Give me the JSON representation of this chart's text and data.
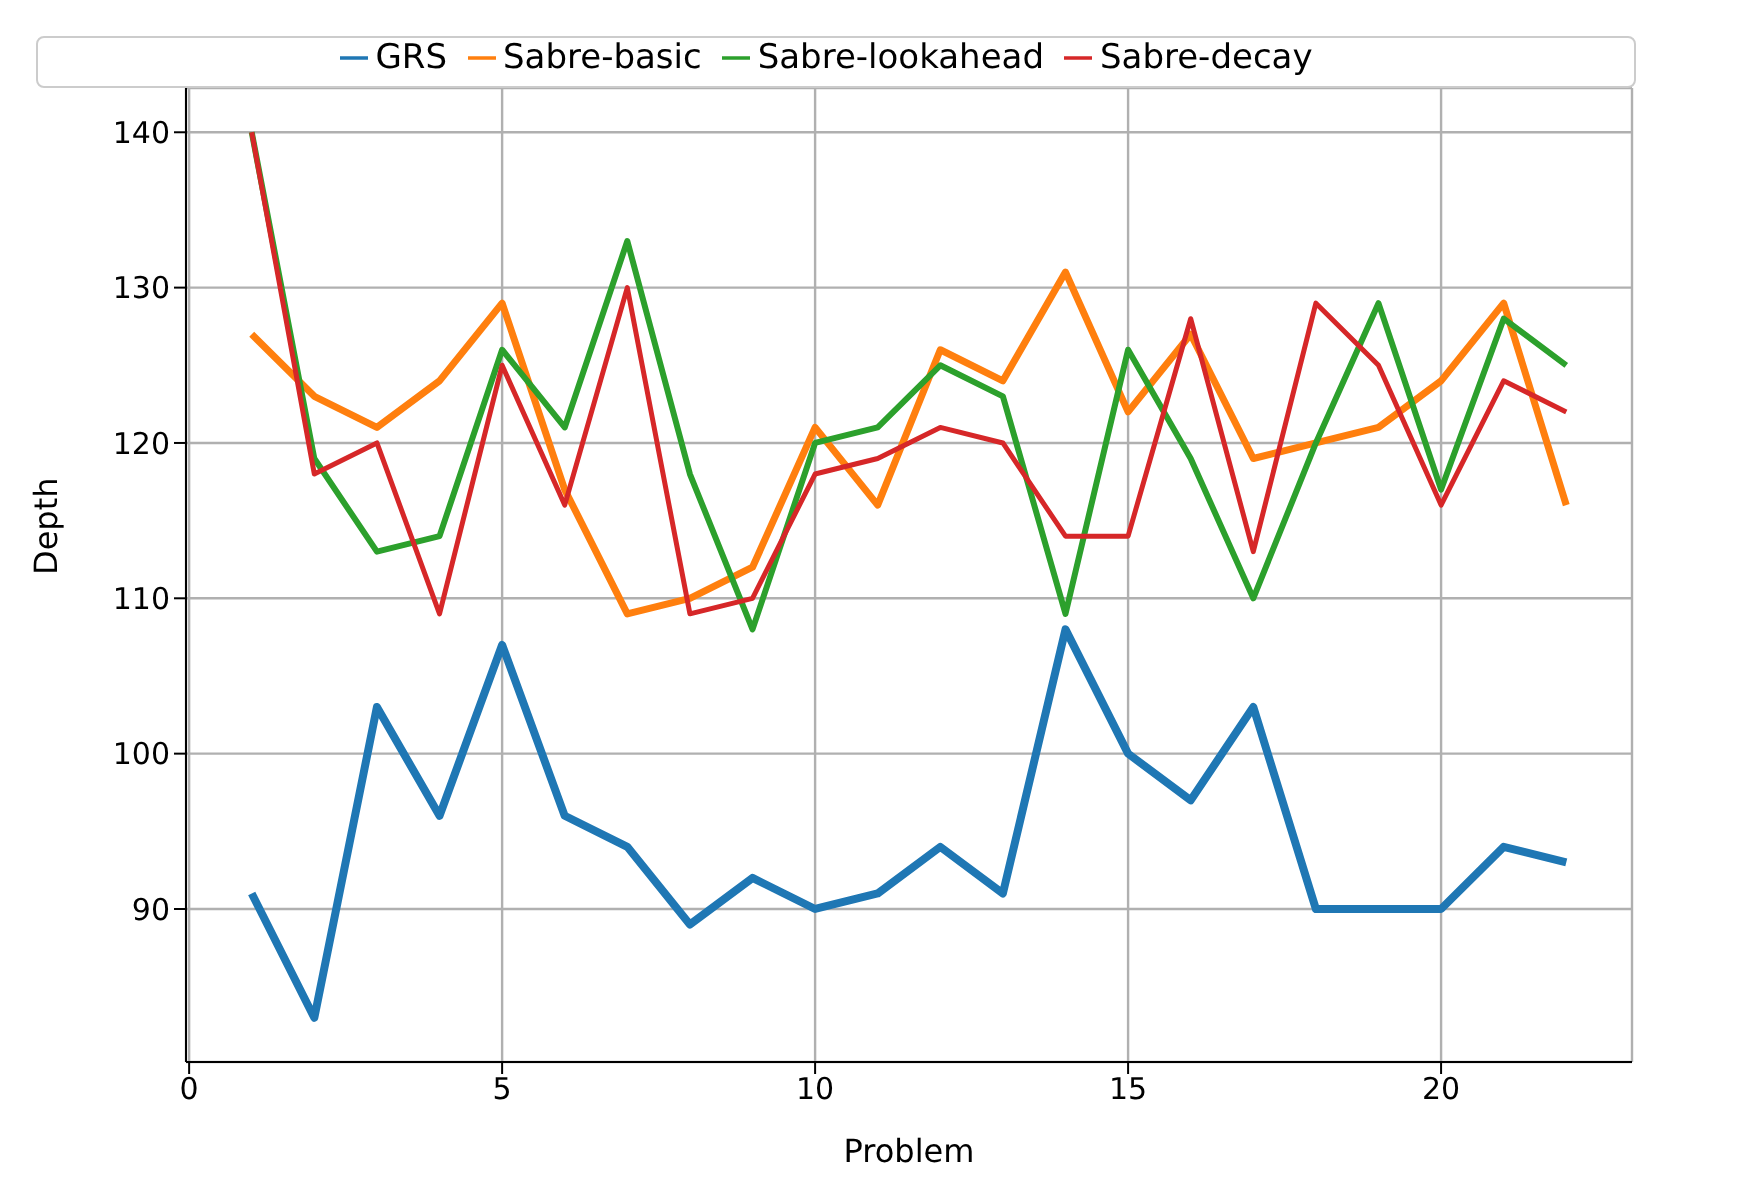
{
  "chart_data": {
    "type": "line",
    "xlabel": "Problem",
    "ylabel": "Depth",
    "x": [
      1,
      2,
      3,
      4,
      5,
      6,
      7,
      8,
      9,
      10,
      11,
      12,
      13,
      14,
      15,
      16,
      17,
      18,
      19,
      20,
      21,
      22
    ],
    "series": [
      {
        "name": "GRS",
        "color": "#1f77b4",
        "values": [
          91,
          83,
          103,
          96,
          107,
          96,
          94,
          89,
          92,
          90,
          91,
          94,
          91,
          108,
          100,
          97,
          103,
          90,
          90,
          90,
          94,
          93
        ]
      },
      {
        "name": "Sabre-basic",
        "color": "#ff7f0e",
        "values": [
          127,
          123,
          121,
          124,
          129,
          117,
          109,
          110,
          112,
          121,
          116,
          126,
          124,
          131,
          122,
          127,
          119,
          120,
          121,
          124,
          129,
          116
        ]
      },
      {
        "name": "Sabre-lookahead",
        "color": "#2ca02c",
        "values": [
          140,
          119,
          113,
          114,
          126,
          121,
          133,
          118,
          108,
          120,
          121,
          125,
          123,
          109,
          126,
          119,
          110,
          120,
          129,
          117,
          128,
          125
        ]
      },
      {
        "name": "Sabre-decay",
        "color": "#d62728",
        "values": [
          140,
          118,
          120,
          109,
          125,
          116,
          130,
          109,
          110,
          118,
          119,
          121,
          120,
          114,
          114,
          128,
          113,
          129,
          125,
          116,
          124,
          122
        ]
      }
    ],
    "xlim": [
      -0.05,
      23.05
    ],
    "ylim": [
      80.15,
      142.85
    ],
    "xticks": [
      0,
      5,
      10,
      15,
      20
    ],
    "yticks": [
      90,
      100,
      110,
      120,
      130,
      140
    ],
    "grid": true,
    "legend": "top",
    "marker": "none",
    "line_style": "solid"
  }
}
